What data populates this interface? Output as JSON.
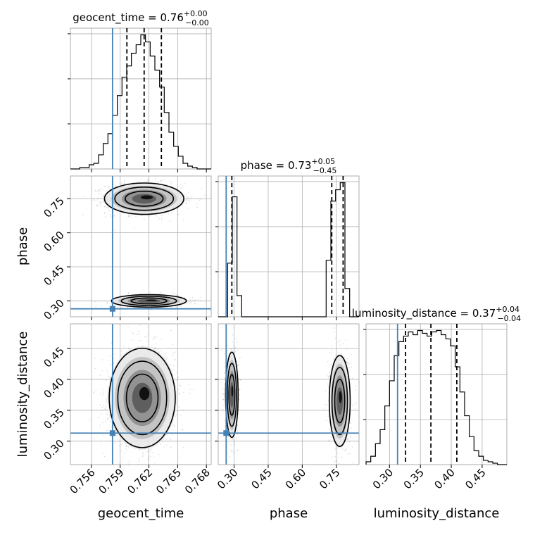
{
  "chart_data": {
    "type": "corner",
    "parameters": [
      "geocent_time",
      "phase",
      "luminosity_distance"
    ],
    "truths": {
      "geocent_time": 0.7582,
      "phase": 0.265,
      "luminosity_distance": 0.313
    },
    "truth_color": "#4682b4",
    "hist_color": "#000000",
    "titles": [
      {
        "param": "geocent_time",
        "median": "0.76",
        "plus": "+0.00",
        "minus": "−0.00"
      },
      {
        "param": "phase",
        "median": "0.73",
        "plus": "+0.05",
        "minus": "−0.45"
      },
      {
        "param": "luminosity_distance",
        "median": "0.37",
        "plus": "+0.04",
        "minus": "−0.04"
      }
    ],
    "axes": {
      "geocent_time": {
        "range": [
          0.7538,
          0.7685
        ],
        "ticks": [
          0.756,
          0.759,
          0.762,
          0.765,
          0.768
        ],
        "tick_labels": [
          "0.756",
          "0.759",
          "0.762",
          "0.765",
          "0.768"
        ]
      },
      "phase": {
        "range": [
          0.23,
          0.85
        ],
        "ticks": [
          0.3,
          0.45,
          0.6,
          0.75
        ],
        "tick_labels": [
          "0.30",
          "0.45",
          "0.60",
          "0.75"
        ]
      },
      "luminosity_distance": {
        "range": [
          0.262,
          0.49
        ],
        "ticks": [
          0.3,
          0.35,
          0.4,
          0.45
        ],
        "tick_labels": [
          "0.30",
          "0.35",
          "0.40",
          "0.45"
        ]
      }
    },
    "histograms": {
      "geocent_time": {
        "bin_edges": [
          0.7538,
          0.75429,
          0.75478,
          0.75527,
          0.75576,
          0.75625,
          0.75674,
          0.75723,
          0.75772,
          0.75821,
          0.7587,
          0.75919,
          0.75968,
          0.76017,
          0.76066,
          0.76115,
          0.76164,
          0.76213,
          0.76262,
          0.76311,
          0.7636,
          0.76409,
          0.76458,
          0.76507,
          0.76556,
          0.76605,
          0.76654,
          0.76703,
          0.76752,
          0.76801,
          0.7685
        ],
        "counts": [
          0,
          0,
          1,
          1,
          3,
          4,
          10,
          18,
          25,
          38,
          52,
          65,
          73,
          82,
          88,
          95,
          90,
          80,
          70,
          58,
          40,
          26,
          16,
          9,
          4,
          2,
          1,
          0,
          0,
          0
        ],
        "quantiles": [
          0.7597,
          0.7615,
          0.7633
        ]
      },
      "phase": {
        "bin_edges": [
          0.23,
          0.2507,
          0.2713,
          0.292,
          0.3127,
          0.3333,
          0.354,
          0.3747,
          0.3953,
          0.416,
          0.4367,
          0.4573,
          0.478,
          0.4987,
          0.5193,
          0.54,
          0.5607,
          0.5813,
          0.602,
          0.6227,
          0.6433,
          0.664,
          0.6847,
          0.7053,
          0.726,
          0.7467,
          0.7673,
          0.788,
          0.8087,
          0.8293,
          0.85
        ],
        "counts": [
          0,
          0,
          38,
          85,
          15,
          0,
          0,
          0,
          0,
          0,
          0,
          0,
          0,
          0,
          0,
          0,
          0,
          0,
          0,
          0,
          0,
          0,
          0,
          40,
          82,
          90,
          95,
          20,
          0,
          0
        ],
        "quantiles": [
          0.29,
          0.73,
          0.78
        ]
      },
      "luminosity_distance": {
        "bin_edges": [
          0.262,
          0.2696,
          0.2772,
          0.2848,
          0.2924,
          0.3,
          0.3076,
          0.3152,
          0.3228,
          0.3304,
          0.338,
          0.3456,
          0.3532,
          0.3608,
          0.3684,
          0.376,
          0.3836,
          0.3912,
          0.3988,
          0.4064,
          0.414,
          0.4216,
          0.4292,
          0.4368,
          0.4444,
          0.452,
          0.4596,
          0.4672,
          0.4748,
          0.4824,
          0.49
        ],
        "counts": [
          2,
          6,
          15,
          25,
          42,
          60,
          78,
          88,
          92,
          95,
          93,
          96,
          94,
          92,
          95,
          96,
          93,
          90,
          85,
          70,
          52,
          35,
          20,
          10,
          6,
          3,
          2,
          1,
          0,
          0
        ],
        "quantiles": [
          0.326,
          0.367,
          0.409
        ]
      }
    },
    "densities": [
      {
        "x": "geocent_time",
        "y": "phase",
        "blobs": [
          {
            "cx": 0.7615,
            "cy": 0.75,
            "sx": 0.0018,
            "sy": 0.03,
            "n": 1500
          },
          {
            "cx": 0.762,
            "cy": 0.3,
            "sx": 0.0017,
            "sy": 0.012,
            "n": 900
          }
        ]
      },
      {
        "x": "geocent_time",
        "y": "luminosity_distance",
        "blobs": [
          {
            "cx": 0.7613,
            "cy": 0.37,
            "sx": 0.0015,
            "sy": 0.035,
            "n": 2000
          }
        ]
      },
      {
        "x": "phase",
        "y": "luminosity_distance",
        "blobs": [
          {
            "cx": 0.29,
            "cy": 0.375,
            "sx": 0.012,
            "sy": 0.03,
            "n": 1000
          },
          {
            "cx": 0.765,
            "cy": 0.365,
            "sx": 0.02,
            "sy": 0.032,
            "n": 1200
          }
        ]
      }
    ]
  }
}
